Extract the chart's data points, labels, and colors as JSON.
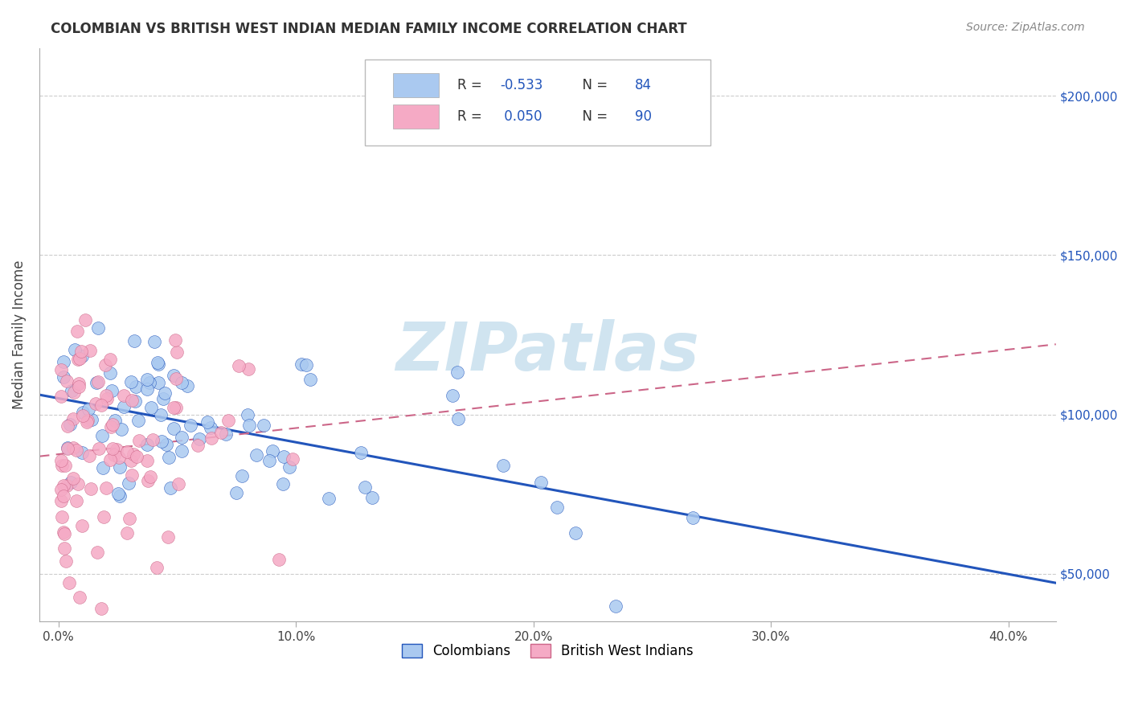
{
  "title": "COLOMBIAN VS BRITISH WEST INDIAN MEDIAN FAMILY INCOME CORRELATION CHART",
  "source": "Source: ZipAtlas.com",
  "ylabel": "Median Family Income",
  "xlabel_ticks": [
    "0.0%",
    "10.0%",
    "20.0%",
    "30.0%",
    "40.0%"
  ],
  "xlabel_vals": [
    0.0,
    0.1,
    0.2,
    0.3,
    0.4
  ],
  "ytick_labels": [
    "$50,000",
    "$100,000",
    "$150,000",
    "$200,000"
  ],
  "ytick_vals": [
    50000,
    100000,
    150000,
    200000
  ],
  "xlim": [
    -0.008,
    0.42
  ],
  "ylim": [
    35000,
    215000
  ],
  "colombians_R": -0.533,
  "colombians_N": 84,
  "bwi_R": 0.05,
  "bwi_N": 90,
  "colombian_color": "#aac9f0",
  "bwi_color": "#f5aac5",
  "colombian_line_color": "#2255bb",
  "bwi_line_color": "#cc6688",
  "watermark_color": "#d0e4f0",
  "title_fontsize": 12,
  "source_fontsize": 10,
  "legend_fontsize": 12,
  "background_color": "#ffffff",
  "grid_color": "#cccccc",
  "seed": 7
}
